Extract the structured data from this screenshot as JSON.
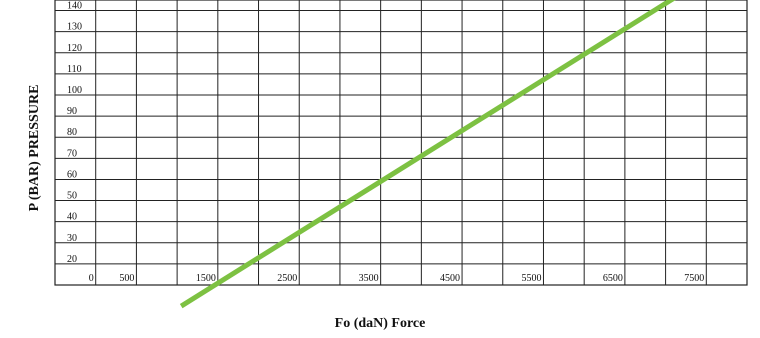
{
  "chart_data": {
    "type": "line",
    "xlabel": "Fo (daN) Force",
    "ylabel": "P (BAR) PRESSURE",
    "x_tick_labels": [
      "0",
      "500",
      "1500",
      "2500",
      "3500",
      "4500",
      "5500",
      "6500",
      "7500"
    ],
    "y_tick_labels": [
      "20",
      "30",
      "40",
      "50",
      "60",
      "70",
      "80",
      "90",
      "100",
      "110",
      "120",
      "130",
      "140"
    ],
    "xlim": [
      -500,
      8000
    ],
    "ylim": [
      10,
      145
    ],
    "grid": true,
    "series": [
      {
        "x": [
          1050,
          7150
        ],
        "y": [
          0,
          147
        ],
        "color": "#7dc142"
      }
    ]
  }
}
